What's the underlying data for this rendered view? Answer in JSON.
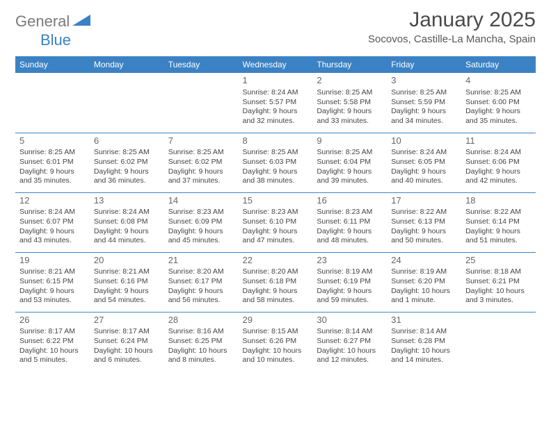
{
  "brand": {
    "part1": "General",
    "part2": "Blue"
  },
  "header": {
    "month_title": "January 2025",
    "location": "Socovos, Castille-La Mancha, Spain"
  },
  "style": {
    "header_bg": "#3b82c4",
    "header_text": "#ffffff",
    "border_color": "#3b82c4",
    "logo_gray": "#7a7a7a",
    "logo_blue": "#3b82c4",
    "body_text": "#444444"
  },
  "weekdays": [
    "Sunday",
    "Monday",
    "Tuesday",
    "Wednesday",
    "Thursday",
    "Friday",
    "Saturday"
  ],
  "weeks": [
    [
      null,
      null,
      null,
      {
        "n": "1",
        "sr": "8:24 AM",
        "ss": "5:57 PM",
        "dl": "9 hours and 32 minutes."
      },
      {
        "n": "2",
        "sr": "8:25 AM",
        "ss": "5:58 PM",
        "dl": "9 hours and 33 minutes."
      },
      {
        "n": "3",
        "sr": "8:25 AM",
        "ss": "5:59 PM",
        "dl": "9 hours and 34 minutes."
      },
      {
        "n": "4",
        "sr": "8:25 AM",
        "ss": "6:00 PM",
        "dl": "9 hours and 35 minutes."
      }
    ],
    [
      {
        "n": "5",
        "sr": "8:25 AM",
        "ss": "6:01 PM",
        "dl": "9 hours and 35 minutes."
      },
      {
        "n": "6",
        "sr": "8:25 AM",
        "ss": "6:02 PM",
        "dl": "9 hours and 36 minutes."
      },
      {
        "n": "7",
        "sr": "8:25 AM",
        "ss": "6:02 PM",
        "dl": "9 hours and 37 minutes."
      },
      {
        "n": "8",
        "sr": "8:25 AM",
        "ss": "6:03 PM",
        "dl": "9 hours and 38 minutes."
      },
      {
        "n": "9",
        "sr": "8:25 AM",
        "ss": "6:04 PM",
        "dl": "9 hours and 39 minutes."
      },
      {
        "n": "10",
        "sr": "8:24 AM",
        "ss": "6:05 PM",
        "dl": "9 hours and 40 minutes."
      },
      {
        "n": "11",
        "sr": "8:24 AM",
        "ss": "6:06 PM",
        "dl": "9 hours and 42 minutes."
      }
    ],
    [
      {
        "n": "12",
        "sr": "8:24 AM",
        "ss": "6:07 PM",
        "dl": "9 hours and 43 minutes."
      },
      {
        "n": "13",
        "sr": "8:24 AM",
        "ss": "6:08 PM",
        "dl": "9 hours and 44 minutes."
      },
      {
        "n": "14",
        "sr": "8:23 AM",
        "ss": "6:09 PM",
        "dl": "9 hours and 45 minutes."
      },
      {
        "n": "15",
        "sr": "8:23 AM",
        "ss": "6:10 PM",
        "dl": "9 hours and 47 minutes."
      },
      {
        "n": "16",
        "sr": "8:23 AM",
        "ss": "6:11 PM",
        "dl": "9 hours and 48 minutes."
      },
      {
        "n": "17",
        "sr": "8:22 AM",
        "ss": "6:13 PM",
        "dl": "9 hours and 50 minutes."
      },
      {
        "n": "18",
        "sr": "8:22 AM",
        "ss": "6:14 PM",
        "dl": "9 hours and 51 minutes."
      }
    ],
    [
      {
        "n": "19",
        "sr": "8:21 AM",
        "ss": "6:15 PM",
        "dl": "9 hours and 53 minutes."
      },
      {
        "n": "20",
        "sr": "8:21 AM",
        "ss": "6:16 PM",
        "dl": "9 hours and 54 minutes."
      },
      {
        "n": "21",
        "sr": "8:20 AM",
        "ss": "6:17 PM",
        "dl": "9 hours and 56 minutes."
      },
      {
        "n": "22",
        "sr": "8:20 AM",
        "ss": "6:18 PM",
        "dl": "9 hours and 58 minutes."
      },
      {
        "n": "23",
        "sr": "8:19 AM",
        "ss": "6:19 PM",
        "dl": "9 hours and 59 minutes."
      },
      {
        "n": "24",
        "sr": "8:19 AM",
        "ss": "6:20 PM",
        "dl": "10 hours and 1 minute."
      },
      {
        "n": "25",
        "sr": "8:18 AM",
        "ss": "6:21 PM",
        "dl": "10 hours and 3 minutes."
      }
    ],
    [
      {
        "n": "26",
        "sr": "8:17 AM",
        "ss": "6:22 PM",
        "dl": "10 hours and 5 minutes."
      },
      {
        "n": "27",
        "sr": "8:17 AM",
        "ss": "6:24 PM",
        "dl": "10 hours and 6 minutes."
      },
      {
        "n": "28",
        "sr": "8:16 AM",
        "ss": "6:25 PM",
        "dl": "10 hours and 8 minutes."
      },
      {
        "n": "29",
        "sr": "8:15 AM",
        "ss": "6:26 PM",
        "dl": "10 hours and 10 minutes."
      },
      {
        "n": "30",
        "sr": "8:14 AM",
        "ss": "6:27 PM",
        "dl": "10 hours and 12 minutes."
      },
      {
        "n": "31",
        "sr": "8:14 AM",
        "ss": "6:28 PM",
        "dl": "10 hours and 14 minutes."
      },
      null
    ]
  ],
  "labels": {
    "sunrise": "Sunrise: ",
    "sunset": "Sunset: ",
    "daylight": "Daylight: "
  }
}
